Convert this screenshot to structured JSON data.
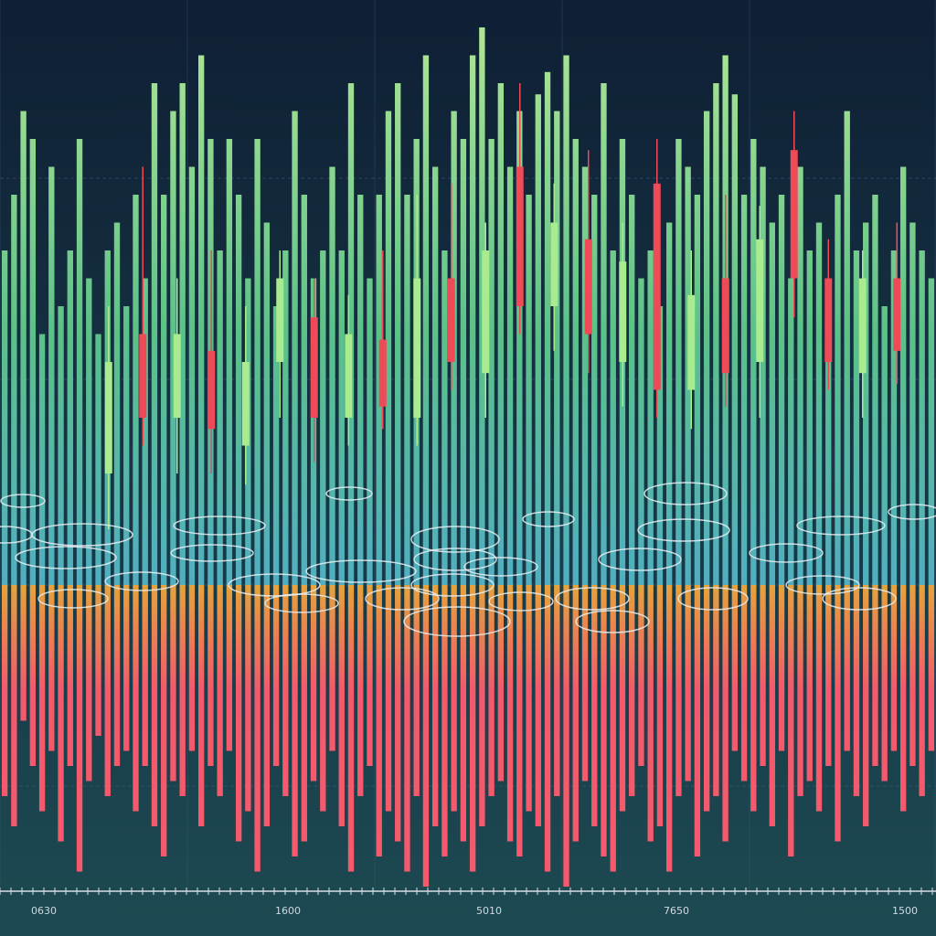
{
  "colors": {
    "background_top": "#0f1f35",
    "background_bottom": "#1d4a52",
    "up_top": "#b8f09a",
    "up_mid": "#5fc98c",
    "up_low": "#54b4c8",
    "down_top": "#f0a83a",
    "down_bottom": "#ff5a6e",
    "candle_up": "#a9eb8f",
    "candle_down": "#ef4a57",
    "ring": "#e7eef2",
    "gridline": "#3d5a7a",
    "axis": "#d7dde6"
  },
  "chart_data": {
    "type": "bar",
    "title": "",
    "xlabel": "",
    "ylabel": "",
    "grid": true,
    "x_tick_labels": [
      "0630",
      "1600",
      "5010",
      "7650",
      "1500"
    ],
    "ylim": [
      -100,
      100
    ],
    "series": [
      {
        "values": [
          60,
          70,
          85,
          80,
          45,
          75,
          50,
          60,
          80,
          55,
          45,
          60,
          65,
          50,
          70,
          55,
          90,
          70,
          85,
          90,
          75,
          95,
          80,
          60,
          80,
          70,
          55,
          80,
          65,
          50,
          60,
          85,
          70,
          55,
          60,
          75,
          60,
          90,
          70,
          55,
          70,
          85,
          90,
          70,
          80,
          95,
          75,
          60,
          85,
          80,
          95,
          100,
          80,
          90,
          75,
          85,
          70,
          88,
          92,
          85,
          95,
          80,
          75,
          70,
          90,
          60,
          80,
          70,
          55,
          60,
          50,
          65,
          80,
          75,
          70,
          85,
          90,
          95,
          88,
          70,
          80,
          75,
          65,
          70,
          55,
          75,
          60,
          65,
          55,
          70,
          85,
          60,
          65,
          70,
          50,
          60,
          75,
          65,
          60,
          55
        ]
      },
      {
        "values": [
          -70,
          -80,
          -45,
          -60,
          -75,
          -55,
          -85,
          -60,
          -95,
          -65,
          -50,
          -70,
          -60,
          -55,
          -75,
          -60,
          -80,
          -90,
          -65,
          -70,
          -55,
          -80,
          -60,
          -70,
          -55,
          -85,
          -75,
          -95,
          -80,
          -60,
          -70,
          -90,
          -85,
          -65,
          -75,
          -55,
          -80,
          -95,
          -70,
          -60,
          -90,
          -75,
          -85,
          -95,
          -70,
          -100,
          -80,
          -90,
          -75,
          -85,
          -95,
          -80,
          -70,
          -65,
          -85,
          -90,
          -75,
          -80,
          -95,
          -70,
          -100,
          -85,
          -65,
          -80,
          -90,
          -95,
          -75,
          -70,
          -60,
          -85,
          -80,
          -95,
          -70,
          -65,
          -90,
          -75,
          -70,
          -85,
          -55,
          -65,
          -75,
          -60,
          -80,
          -55,
          -90,
          -70,
          -65,
          -75,
          -60,
          -85,
          -55,
          -70,
          -80,
          -60,
          -65,
          -55,
          -75,
          -60,
          -70,
          -55
        ]
      }
    ],
    "candles": [
      {
        "open": 20,
        "close": 40,
        "high": 50,
        "low": 10
      },
      {
        "open": 45,
        "close": 30,
        "high": 75,
        "low": 25
      },
      {
        "open": 30,
        "close": 45,
        "high": 55,
        "low": 20
      },
      {
        "open": 42,
        "close": 28,
        "high": 60,
        "low": 20
      },
      {
        "open": 25,
        "close": 40,
        "high": 50,
        "low": 18
      },
      {
        "open": 40,
        "close": 55,
        "high": 60,
        "low": 30
      },
      {
        "open": 48,
        "close": 30,
        "high": 55,
        "low": 22
      },
      {
        "open": 30,
        "close": 45,
        "high": 52,
        "low": 25
      },
      {
        "open": 44,
        "close": 32,
        "high": 60,
        "low": 28
      },
      {
        "open": 30,
        "close": 55,
        "high": 70,
        "low": 25
      },
      {
        "open": 55,
        "close": 40,
        "high": 72,
        "low": 35
      },
      {
        "open": 38,
        "close": 60,
        "high": 65,
        "low": 30
      },
      {
        "open": 75,
        "close": 50,
        "high": 90,
        "low": 45
      },
      {
        "open": 50,
        "close": 65,
        "high": 72,
        "low": 42
      },
      {
        "open": 62,
        "close": 45,
        "high": 78,
        "low": 38
      },
      {
        "open": 40,
        "close": 58,
        "high": 65,
        "low": 32
      },
      {
        "open": 72,
        "close": 35,
        "high": 80,
        "low": 30
      },
      {
        "open": 35,
        "close": 52,
        "high": 60,
        "low": 28
      },
      {
        "open": 55,
        "close": 38,
        "high": 70,
        "low": 32
      },
      {
        "open": 40,
        "close": 62,
        "high": 68,
        "low": 30
      },
      {
        "open": 78,
        "close": 55,
        "high": 85,
        "low": 48
      },
      {
        "open": 55,
        "close": 40,
        "high": 62,
        "low": 35
      },
      {
        "open": 38,
        "close": 55,
        "high": 60,
        "low": 30
      },
      {
        "open": 55,
        "close": 42,
        "high": 65,
        "low": 36
      }
    ]
  }
}
